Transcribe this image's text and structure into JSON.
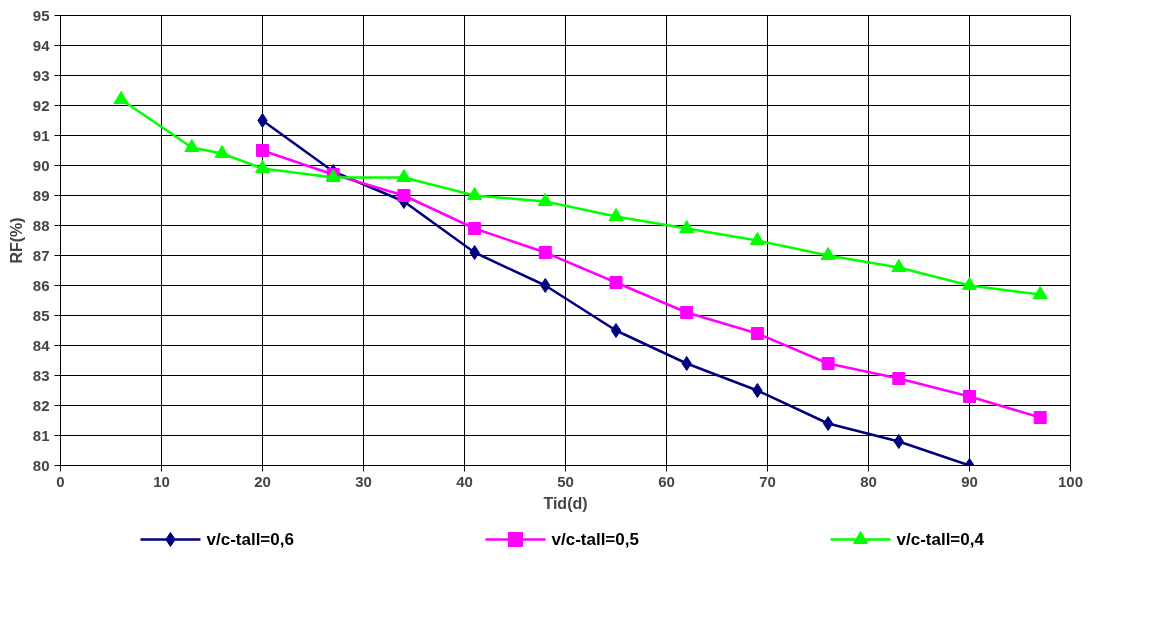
{
  "chart_data": {
    "type": "line",
    "xlabel": "Tid(d)",
    "ylabel": "RF(%)",
    "xlim": [
      0,
      100
    ],
    "xticks": [
      0,
      10,
      20,
      30,
      40,
      50,
      60,
      70,
      80,
      90,
      100
    ],
    "ylim": [
      80,
      95
    ],
    "yticks": [
      80,
      81,
      82,
      83,
      84,
      85,
      86,
      87,
      88,
      89,
      90,
      91,
      92,
      93,
      94,
      95
    ],
    "grid": true,
    "legend": "bottom",
    "series": [
      {
        "name": "v/c-tall=0,6",
        "color": "#000080",
        "marker": "diamond",
        "x": [
          20,
          27,
          34,
          41,
          48,
          55,
          62,
          69,
          76,
          83,
          90
        ],
        "values": [
          91.5,
          89.8,
          88.8,
          87.1,
          86.0,
          84.5,
          83.4,
          82.5,
          81.4,
          80.8,
          80.0
        ]
      },
      {
        "name": "v/c-tall=0,5",
        "color": "#ff00ff",
        "marker": "square",
        "x": [
          20,
          27,
          34,
          41,
          48,
          55,
          62,
          69,
          76,
          83,
          90,
          97
        ],
        "values": [
          90.5,
          89.7,
          89.0,
          87.9,
          87.1,
          86.1,
          85.1,
          84.4,
          83.4,
          82.9,
          82.3,
          81.6
        ]
      },
      {
        "name": "v/c-tall=0,4",
        "color": "#00ff00",
        "marker": "triangle",
        "x": [
          6,
          13,
          16,
          20,
          27,
          34,
          41,
          48,
          55,
          62,
          69,
          76,
          83,
          90,
          97
        ],
        "values": [
          92.2,
          90.6,
          90.4,
          89.9,
          89.6,
          89.6,
          89.0,
          88.8,
          88.3,
          87.9,
          87.5,
          87.0,
          86.6,
          86.0,
          85.7
        ]
      }
    ]
  }
}
